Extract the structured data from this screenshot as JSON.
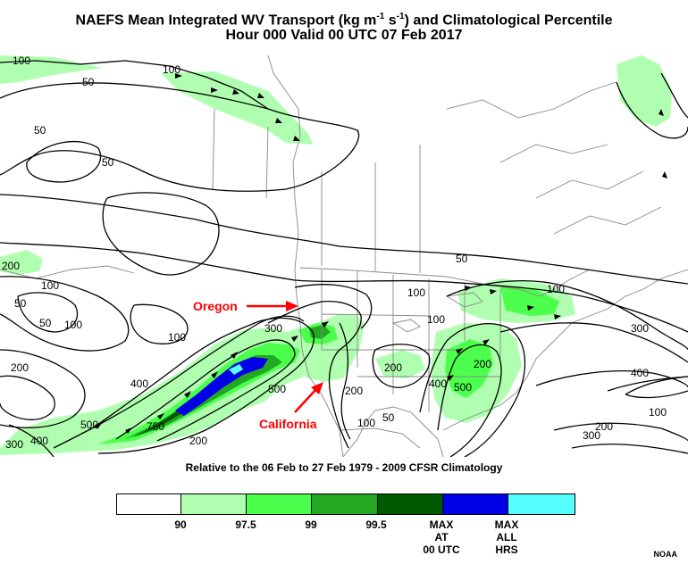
{
  "header": {
    "title_pre": "NAEFS Mean Integrated WV Transport (kg m",
    "title_sup1": "-1",
    "title_mid": " s",
    "title_sup2": "-1",
    "title_post": ") and Climatological Percentile",
    "valid": "Hour 000 Valid 00 UTC 07 Feb 2017"
  },
  "map": {
    "annotations": {
      "oregon": "Oregon",
      "california": "California"
    },
    "contour_labels": [
      "100",
      "50",
      "100",
      "50",
      "50",
      "200",
      "100",
      "50",
      "300",
      "100",
      "50",
      "100",
      "200",
      "400",
      "500",
      "750",
      "300",
      "400",
      "500",
      "200",
      "200",
      "100",
      "50",
      "100",
      "200",
      "100",
      "100",
      "300",
      "400",
      "500",
      "200",
      "100",
      "300",
      "200",
      "400",
      "50"
    ]
  },
  "climatology": {
    "label": "Relative to the 06 Feb to 27 Feb 1979 - 2009 CFSR Climatology"
  },
  "colorbar": {
    "colors": [
      "#ffffff",
      "#b0ffb0",
      "#4cff4c",
      "#22a822",
      "#005a00",
      "#0000e6",
      "#55ffff"
    ],
    "labels": [
      {
        "line1": "90"
      },
      {
        "line1": "97.5"
      },
      {
        "line1": "99"
      },
      {
        "line1": "99.5"
      },
      {
        "line1": "MAX",
        "line2": "AT",
        "line3": "00 UTC"
      },
      {
        "line1": "MAX",
        "line2": "ALL",
        "line3": "HRS"
      }
    ]
  },
  "credit": "NOAA"
}
